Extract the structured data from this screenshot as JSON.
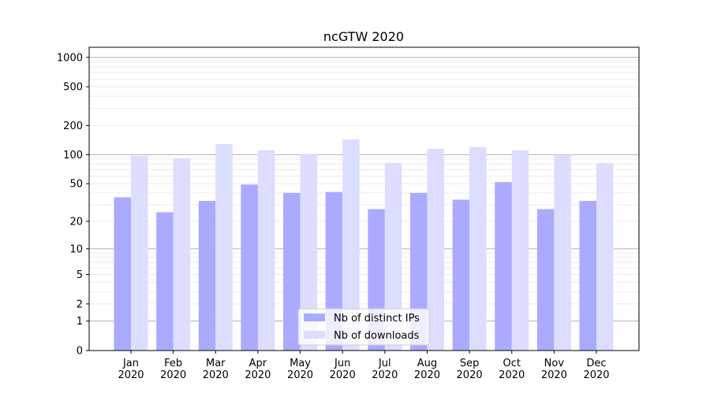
{
  "chart_data": {
    "type": "bar",
    "title": "ncGTW 2020",
    "xlabel": "",
    "ylabel": "",
    "yscale": "log10(1+y)",
    "ylim": [
      0,
      1270
    ],
    "grid": "y major and minor",
    "legend_position": "bottom-center",
    "categories": [
      "Jan\n2020",
      "Feb\n2020",
      "Mar\n2020",
      "Apr\n2020",
      "May\n2020",
      "Jun\n2020",
      "Jul\n2020",
      "Aug\n2020",
      "Sep\n2020",
      "Oct\n2020",
      "Nov\n2020",
      "Dec\n2020"
    ],
    "y_ticks": [
      0,
      1,
      2,
      5,
      10,
      20,
      50,
      100,
      200,
      500,
      1000
    ],
    "series": [
      {
        "name": "Nb of distinct IPs",
        "color": "#aaaaff",
        "values": [
          36,
          25,
          33,
          49,
          40,
          41,
          27,
          40,
          34,
          52,
          27,
          33
        ]
      },
      {
        "name": "Nb of downloads",
        "color": "#ddddff",
        "values": [
          97,
          92,
          129,
          111,
          102,
          144,
          82,
          115,
          120,
          111,
          100,
          82
        ]
      }
    ]
  }
}
